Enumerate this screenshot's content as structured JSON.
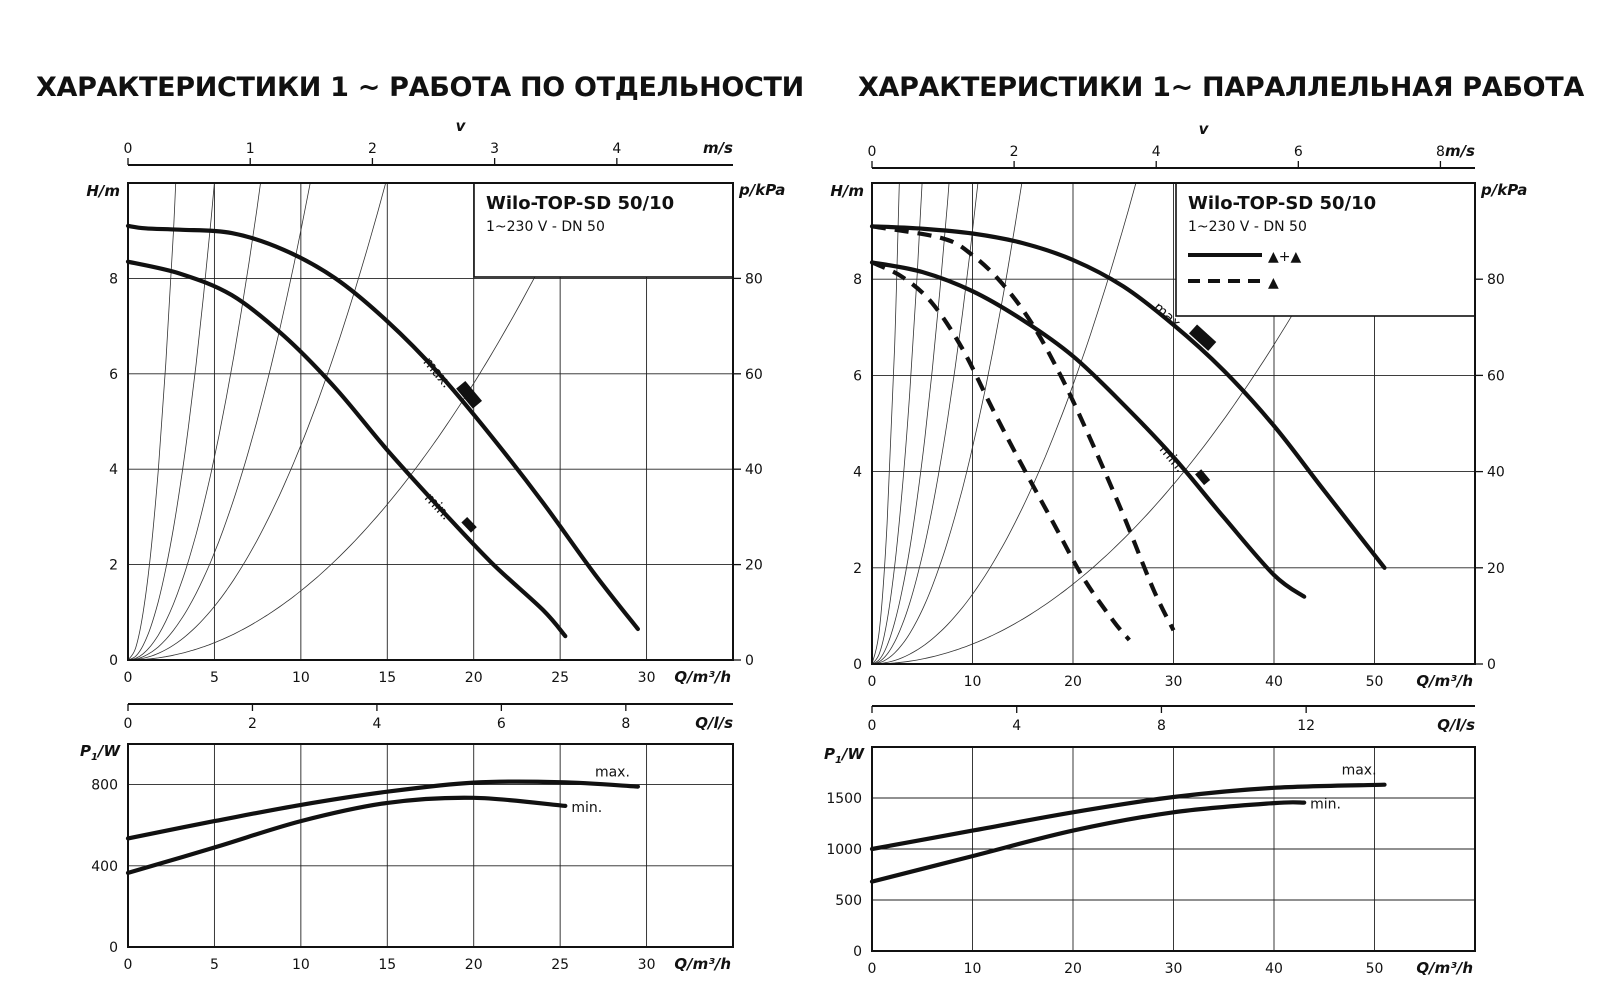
{
  "titles": {
    "left": "ХАРАКТЕРИСТИКИ 1 ~ РАБОТА ПО ОТДЕЛЬНОСТИ",
    "right": "ХАРАКТЕРИСТИКИ 1~ ПАРАЛЛЕЛЬНАЯ РАБОТА"
  },
  "chart_data": [
    {
      "id": "left-head",
      "type": "line",
      "title": "ХАРАКТЕРИСТИКИ 1 ~ РАБОТА ПО ОТДЕЛЬНОСТИ",
      "legend_box": {
        "title": "Wilo-TOP-SD 50/10",
        "subtitle": "1~230 V - DN 50"
      },
      "xlabel": "Q/m³/h",
      "xlim": [
        0,
        35
      ],
      "xticks": [
        0,
        5,
        10,
        15,
        20,
        25,
        30
      ],
      "ylabel": "H/m",
      "ylim": [
        0,
        10
      ],
      "yticks": [
        0,
        2,
        4,
        6,
        8
      ],
      "y2label": "p/kPa",
      "y2ticks": [
        0,
        20,
        40,
        60,
        80
      ],
      "top_axis": {
        "label": "v",
        "unit": "m/s",
        "ticks": [
          0,
          1,
          2,
          3,
          4
        ],
        "q_per_unit": 7.07
      },
      "bottom_axis2": {
        "unit": "Q/l/s",
        "ticks": [
          0,
          2,
          4,
          6,
          8
        ],
        "q_per_unit": 3.6
      },
      "system_curves_k": [
        1.3,
        0.4,
        0.17,
        0.09,
        0.045,
        0.0145
      ],
      "grid": true,
      "series": [
        {
          "name": "max.",
          "style": "solid",
          "x": [
            0,
            1,
            3,
            6,
            9,
            12,
            15,
            18,
            21,
            24,
            27,
            29.5
          ],
          "y": [
            9.1,
            9.05,
            9.02,
            8.95,
            8.6,
            8.0,
            7.1,
            6.0,
            4.7,
            3.3,
            1.8,
            0.65
          ]
        },
        {
          "name": "min.",
          "style": "solid",
          "x": [
            0,
            3,
            6,
            9,
            12,
            15,
            18,
            21,
            24,
            25.3
          ],
          "y": [
            8.35,
            8.1,
            7.65,
            6.8,
            5.7,
            4.4,
            3.2,
            2.05,
            1.05,
            0.5
          ]
        }
      ]
    },
    {
      "id": "left-power",
      "type": "line",
      "xlabel": "Q/m³/h",
      "xlim": [
        0,
        35
      ],
      "xticks": [
        0,
        5,
        10,
        15,
        20,
        25,
        30
      ],
      "ylabel": "P1/W",
      "ylim": [
        0,
        1000
      ],
      "yticks": [
        0,
        400,
        800
      ],
      "grid": true,
      "series": [
        {
          "name": "max.",
          "x": [
            0,
            5,
            10,
            15,
            20,
            25,
            29.5
          ],
          "y": [
            535,
            620,
            700,
            765,
            810,
            812,
            790
          ]
        },
        {
          "name": "min.",
          "x": [
            0,
            5,
            10,
            15,
            20,
            25.3
          ],
          "y": [
            365,
            490,
            620,
            710,
            735,
            695
          ]
        }
      ]
    },
    {
      "id": "right-head",
      "type": "line",
      "title": "ХАРАКТЕРИСТИКИ 1~ ПАРАЛЛЕЛЬНАЯ РАБОТА",
      "legend_box": {
        "title": "Wilo-TOP-SD 50/10",
        "subtitle": "1~230 V - DN 50",
        "solid_label": "▲+▲",
        "dashed_label": "▲"
      },
      "xlabel": "Q/m³/h",
      "xlim": [
        0,
        60
      ],
      "xticks": [
        0,
        10,
        20,
        30,
        40,
        50
      ],
      "ylabel": "H/m",
      "ylim": [
        0,
        10
      ],
      "yticks": [
        0,
        2,
        4,
        6,
        8
      ],
      "y2label": "p/kPa",
      "y2ticks": [
        0,
        20,
        40,
        60,
        80
      ],
      "top_axis": {
        "label": "v",
        "unit": "m/s",
        "ticks": [
          0,
          2,
          4,
          6,
          8
        ],
        "q_per_unit": 7.07
      },
      "bottom_axis2": {
        "unit": "Q/l/s",
        "ticks": [
          0,
          4,
          8,
          12
        ],
        "q_per_unit": 3.6
      },
      "system_curves_k": [
        1.3,
        0.4,
        0.17,
        0.09,
        0.045,
        0.0145,
        0.00415
      ],
      "grid": true,
      "series": [
        {
          "name": "max.",
          "style": "solid",
          "x": [
            0,
            5,
            10,
            15,
            20,
            25,
            30,
            35,
            40,
            45,
            51
          ],
          "y": [
            9.1,
            9.05,
            8.95,
            8.75,
            8.4,
            7.85,
            7.05,
            6.1,
            4.95,
            3.6,
            2.0
          ]
        },
        {
          "name": "min.",
          "style": "solid",
          "x": [
            0,
            5,
            10,
            15,
            20,
            25,
            30,
            35,
            40,
            43
          ],
          "y": [
            8.35,
            8.15,
            7.75,
            7.15,
            6.4,
            5.4,
            4.3,
            3.05,
            1.85,
            1.4
          ]
        },
        {
          "name": "max. (1 pump)",
          "style": "dashed",
          "x": [
            0,
            7,
            10,
            13,
            16,
            19,
            22,
            25,
            28,
            30
          ],
          "y": [
            9.1,
            8.85,
            8.5,
            7.9,
            7.05,
            5.9,
            4.55,
            3.1,
            1.55,
            0.7
          ]
        },
        {
          "name": "min. (1 pump)",
          "style": "dashed",
          "x": [
            0,
            3,
            6,
            9,
            12,
            15,
            18,
            21,
            24,
            25.6
          ],
          "y": [
            8.35,
            8.05,
            7.5,
            6.55,
            5.3,
            4.1,
            2.95,
            1.8,
            0.9,
            0.5
          ]
        }
      ]
    },
    {
      "id": "right-power",
      "type": "line",
      "xlabel": "Q/m³/h",
      "xlim": [
        0,
        60
      ],
      "xticks": [
        0,
        10,
        20,
        30,
        40,
        50
      ],
      "ylabel": "P1/W",
      "ylim": [
        0,
        2000
      ],
      "yticks": [
        0,
        500,
        1000,
        1500
      ],
      "grid": true,
      "series": [
        {
          "name": "max.",
          "x": [
            0,
            10,
            20,
            30,
            40,
            51
          ],
          "y": [
            1000,
            1180,
            1360,
            1510,
            1600,
            1630
          ]
        },
        {
          "name": "min.",
          "x": [
            0,
            10,
            20,
            30,
            40,
            43
          ],
          "y": [
            680,
            930,
            1180,
            1360,
            1450,
            1455
          ]
        }
      ]
    }
  ]
}
